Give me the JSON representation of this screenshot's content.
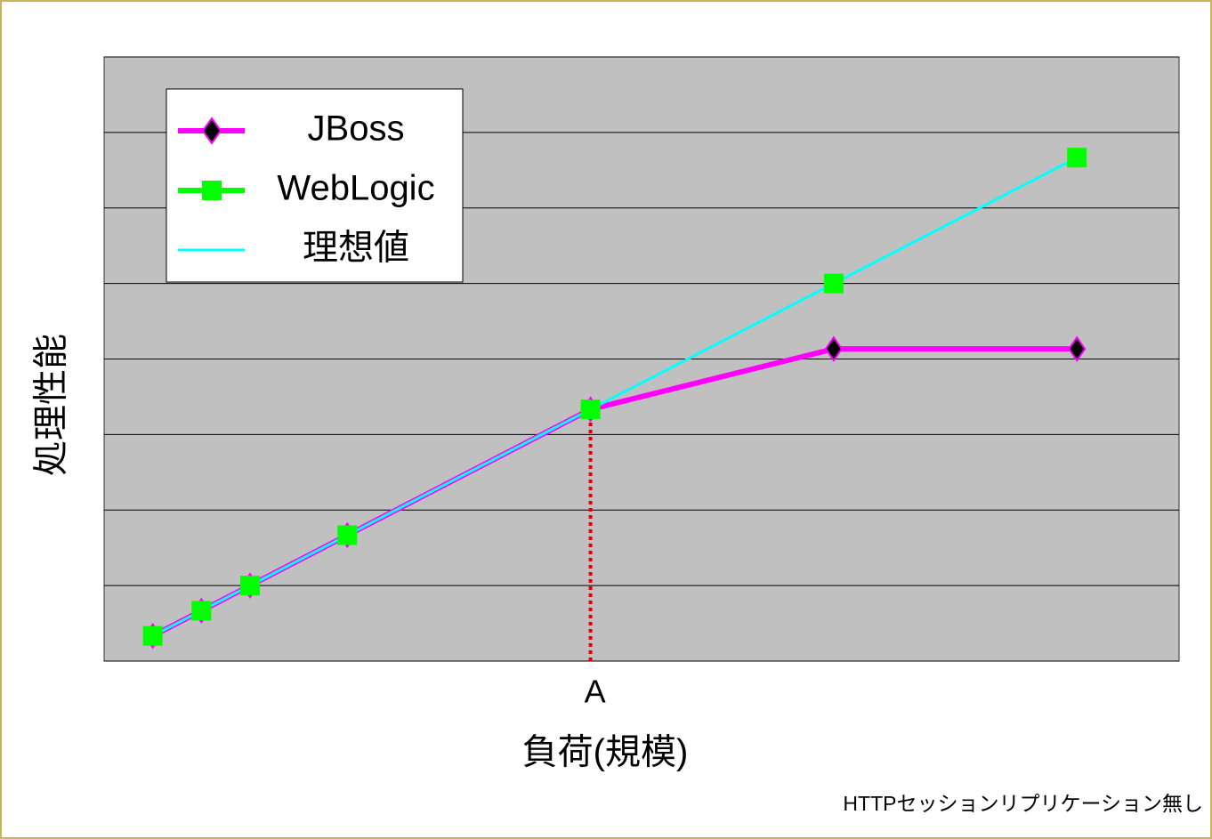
{
  "chart_data": {
    "type": "line",
    "x_label": "負荷(規模)",
    "y_label": "処理性能",
    "annotation": {
      "text": "A",
      "x": 10
    },
    "footnote": "HTTPセッションリプリケーション無し",
    "x": [
      1,
      2,
      3,
      5,
      10,
      15,
      20
    ],
    "series": [
      {
        "name": "JBoss",
        "color": "#ff00ff",
        "marker": "diamond",
        "values": [
          1,
          2,
          3,
          5,
          10,
          12.4,
          12.4
        ]
      },
      {
        "name": "WebLogic",
        "color": "#00ff00",
        "marker": "square",
        "values": [
          1,
          2,
          3,
          5,
          10,
          15,
          20
        ]
      },
      {
        "name": "理想値",
        "color": "#00ffff",
        "marker": "none",
        "values": [
          1,
          2,
          3,
          5,
          10,
          15,
          20
        ]
      }
    ],
    "xlim": [
      0,
      22.1
    ],
    "ylim": [
      0,
      24
    ],
    "yticks": [
      0,
      3,
      6,
      9,
      12,
      15,
      18,
      21,
      24
    ],
    "grid": true,
    "legend": "upper left"
  }
}
